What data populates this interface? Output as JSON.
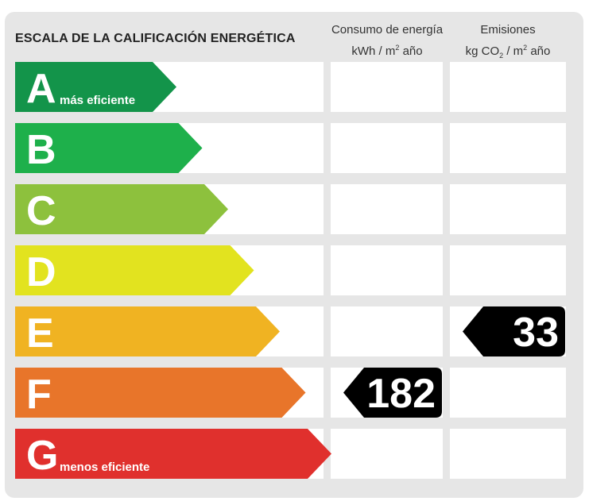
{
  "chart_data": {
    "type": "table",
    "title": "ESCALA DE LA CALIFICACIÓN ENERGÉTICA",
    "columns": {
      "consumption": {
        "line1": "Consumo de energía",
        "line2_pre": "kWh / m",
        "sup": "2",
        "line2_post": " año"
      },
      "emissions": {
        "line1": "Emisiones",
        "line2_pre": "kg CO",
        "sub": "2",
        "line2_mid": " / m",
        "sup": "2",
        "line2_post": " año"
      }
    },
    "classes": [
      {
        "letter": "A",
        "note": "más eficiente",
        "color": "#13944a"
      },
      {
        "letter": "B",
        "note": "",
        "color": "#1eb04b"
      },
      {
        "letter": "C",
        "note": "",
        "color": "#8dc13d"
      },
      {
        "letter": "D",
        "note": "",
        "color": "#e2e31f"
      },
      {
        "letter": "E",
        "note": "",
        "color": "#f0b322"
      },
      {
        "letter": "F",
        "note": "",
        "color": "#e8752a"
      },
      {
        "letter": "G",
        "note": "menos eficiente",
        "color": "#e0302d"
      }
    ],
    "ratings": {
      "consumption": {
        "class": "F",
        "value": 182
      },
      "emissions": {
        "class": "E",
        "value": 33
      }
    }
  }
}
